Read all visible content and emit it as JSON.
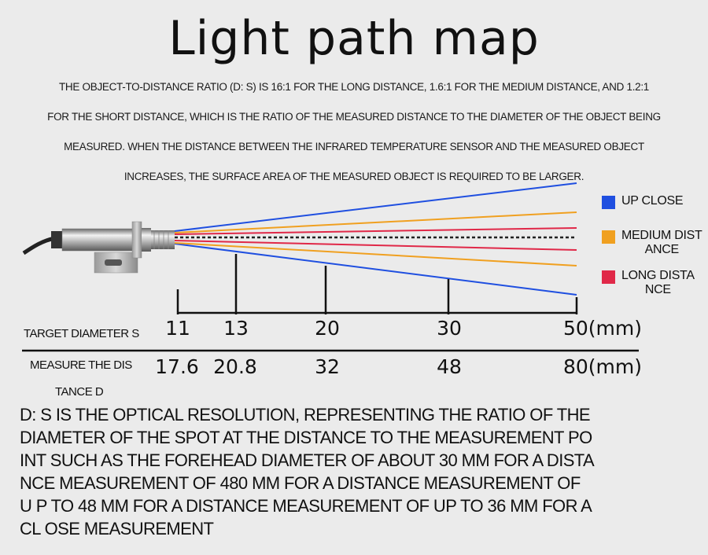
{
  "title": "Light path map",
  "intro": "THE OBJECT-TO-DISTANCE RATIO (D: S) IS 16:1 FOR THE LONG DISTANCE, 1.6:1 FOR THE MEDIUM DISTANCE, AND 1.2:1 FOR THE SHORT DISTANCE, WHICH IS THE RATIO OF THE MEASURED DISTANCE TO THE DIAMETER OF THE OBJECT BEING MEASURED. WHEN THE DISTANCE BETWEEN THE INFRARED TEMPERATURE SENSOR AND THE MEASURED OBJECT INCREASES, THE SURFACE AREA OF THE MEASURED OBJECT IS REQUIRED TO BE LARGER.",
  "legend": [
    {
      "label": "UP CLOSE",
      "color": "#1f4fe0"
    },
    {
      "label": "MEDIUM DIST\nANCE",
      "color": "#f0a020"
    },
    {
      "label": "LONG DISTA\nNCE",
      "color": "#e02848"
    }
  ],
  "table": {
    "target_label": "TARGET DIAMETER S",
    "distance_label": "MEASURE THE DIS",
    "distance_label_cont": "TANCE D",
    "target_values": [
      "11",
      "13",
      "20",
      "30",
      "50(mm)"
    ],
    "distance_values": [
      "17.6",
      "20.8",
      "32",
      "48",
      "80(mm)"
    ]
  },
  "footnote": "D: S IS THE OPTICAL RESOLUTION, REPRESENTING THE RATIO OF THE DIAMETER OF THE SPOT AT THE DISTANCE TO THE MEASUREMENT PO INT SUCH AS THE FOREHEAD DIAMETER OF ABOUT 30 MM FOR A DISTA NCE MEASUREMENT OF 480 MM FOR A DISTANCE MEASUREMENT OF U P TO 48 MM FOR A DISTANCE MEASUREMENT OF UP TO 36 MM FOR A CL OSE MEASUREMENT"
}
